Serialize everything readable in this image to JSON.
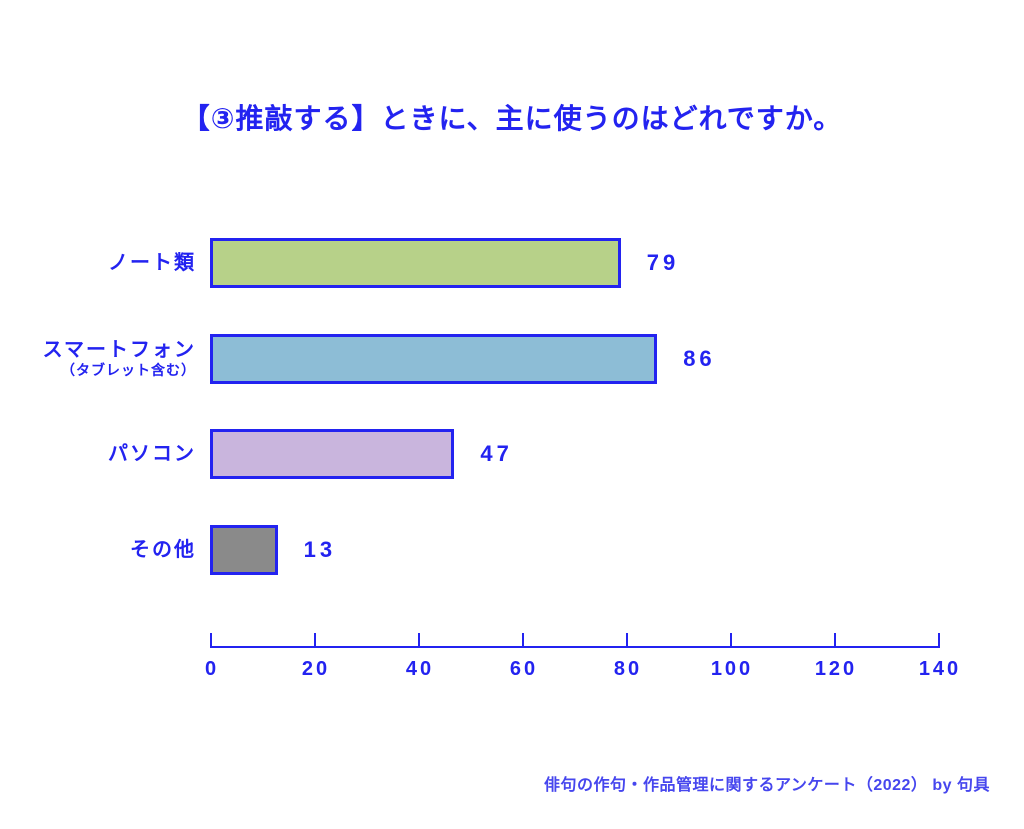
{
  "title": "【③推敲する】ときに、主に使うのはどれですか。",
  "footer": "俳句の作句・作品管理に関するアンケート（2022） by 句具",
  "colors": {
    "accent_blue": "#2323f0",
    "bar_green": "#b7d189",
    "bar_light_blue": "#8dbdd6",
    "bar_purple": "#c9b5dd",
    "bar_gray": "#8a8a8a",
    "background": "#ffffff"
  },
  "chart_data": {
    "type": "bar",
    "orientation": "horizontal",
    "title": "【③推敲する】ときに、主に使うのはどれですか。",
    "categories": [
      "ノート類",
      "スマートフォン",
      "パソコン",
      "その他"
    ],
    "category_sublabels": [
      "",
      "（タブレット含む）",
      "",
      ""
    ],
    "values": [
      79,
      86,
      47,
      13
    ],
    "value_labels": [
      "79",
      "86",
      "47",
      "13"
    ],
    "bar_colors": [
      "#b7d189",
      "#8dbdd6",
      "#c9b5dd",
      "#8a8a8a"
    ],
    "x_ticks": [
      "0",
      "20",
      "40",
      "60",
      "80",
      "100",
      "120",
      "140"
    ],
    "xlim": [
      0,
      140
    ],
    "grid": false,
    "legend": false,
    "source_note": "俳句の作句・作品管理に関するアンケート（2022） by 句具"
  }
}
